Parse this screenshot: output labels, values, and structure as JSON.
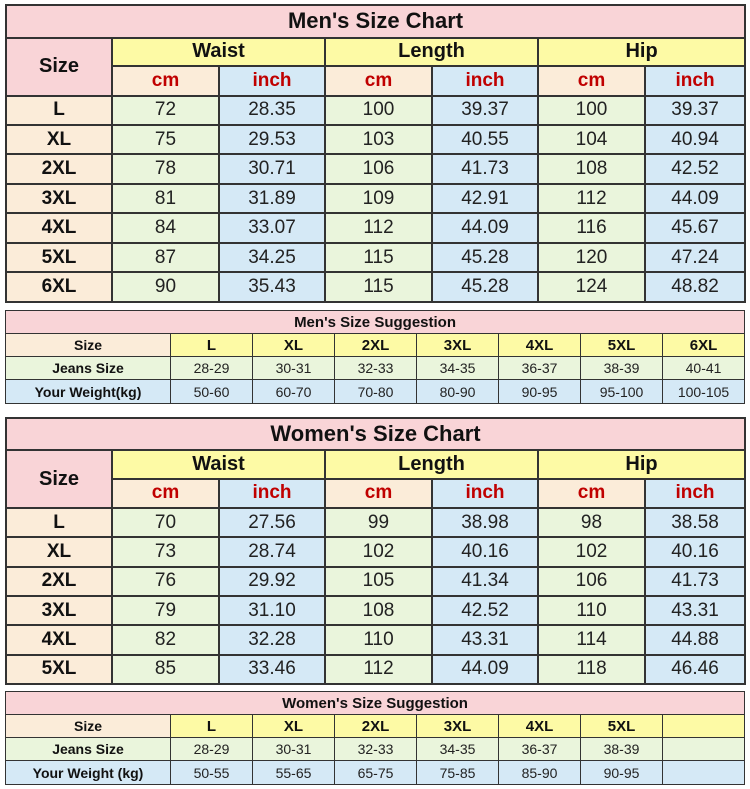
{
  "men_chart": {
    "title": "Men's Size Chart",
    "size_label": "Size",
    "groups": [
      "Waist",
      "Length",
      "Hip"
    ],
    "units": [
      "cm",
      "inch"
    ],
    "rows": [
      {
        "size": "L",
        "values": [
          "72",
          "28.35",
          "100",
          "39.37",
          "100",
          "39.37"
        ]
      },
      {
        "size": "XL",
        "values": [
          "75",
          "29.53",
          "103",
          "40.55",
          "104",
          "40.94"
        ]
      },
      {
        "size": "2XL",
        "values": [
          "78",
          "30.71",
          "106",
          "41.73",
          "108",
          "42.52"
        ]
      },
      {
        "size": "3XL",
        "values": [
          "81",
          "31.89",
          "109",
          "42.91",
          "112",
          "44.09"
        ]
      },
      {
        "size": "4XL",
        "values": [
          "84",
          "33.07",
          "112",
          "44.09",
          "116",
          "45.67"
        ]
      },
      {
        "size": "5XL",
        "values": [
          "87",
          "34.25",
          "115",
          "45.28",
          "120",
          "47.24"
        ]
      },
      {
        "size": "6XL",
        "values": [
          "90",
          "35.43",
          "115",
          "45.28",
          "124",
          "48.82"
        ]
      }
    ]
  },
  "men_suggestion": {
    "title": "Men's Size Suggestion",
    "size_label": "Size",
    "jeans_label": "Jeans Size",
    "weight_label": "Your Weight(kg)",
    "sizes": [
      "L",
      "XL",
      "2XL",
      "3XL",
      "4XL",
      "5XL",
      "6XL"
    ],
    "jeans": [
      "28-29",
      "30-31",
      "32-33",
      "34-35",
      "36-37",
      "38-39",
      "40-41"
    ],
    "weights": [
      "50-60",
      "60-70",
      "70-80",
      "80-90",
      "90-95",
      "95-100",
      "100-105"
    ]
  },
  "women_chart": {
    "title": "Women's Size Chart",
    "size_label": "Size",
    "groups": [
      "Waist",
      "Length",
      "Hip"
    ],
    "units": [
      "cm",
      "inch"
    ],
    "rows": [
      {
        "size": "L",
        "values": [
          "70",
          "27.56",
          "99",
          "38.98",
          "98",
          "38.58"
        ]
      },
      {
        "size": "XL",
        "values": [
          "73",
          "28.74",
          "102",
          "40.16",
          "102",
          "40.16"
        ]
      },
      {
        "size": "2XL",
        "values": [
          "76",
          "29.92",
          "105",
          "41.34",
          "106",
          "41.73"
        ]
      },
      {
        "size": "3XL",
        "values": [
          "79",
          "31.10",
          "108",
          "42.52",
          "110",
          "43.31"
        ]
      },
      {
        "size": "4XL",
        "values": [
          "82",
          "32.28",
          "110",
          "43.31",
          "114",
          "44.88"
        ]
      },
      {
        "size": "5XL",
        "values": [
          "85",
          "33.46",
          "112",
          "44.09",
          "118",
          "46.46"
        ]
      }
    ]
  },
  "women_suggestion": {
    "title": "Women's Size Suggestion",
    "size_label": "Size",
    "jeans_label": "Jeans Size",
    "weight_label": "Your Weight (kg)",
    "sizes": [
      "L",
      "XL",
      "2XL",
      "3XL",
      "4XL",
      "5XL",
      ""
    ],
    "jeans": [
      "28-29",
      "30-31",
      "32-33",
      "34-35",
      "36-37",
      "38-39",
      ""
    ],
    "weights": [
      "50-55",
      "55-65",
      "65-75",
      "75-85",
      "85-90",
      "90-95",
      ""
    ]
  }
}
